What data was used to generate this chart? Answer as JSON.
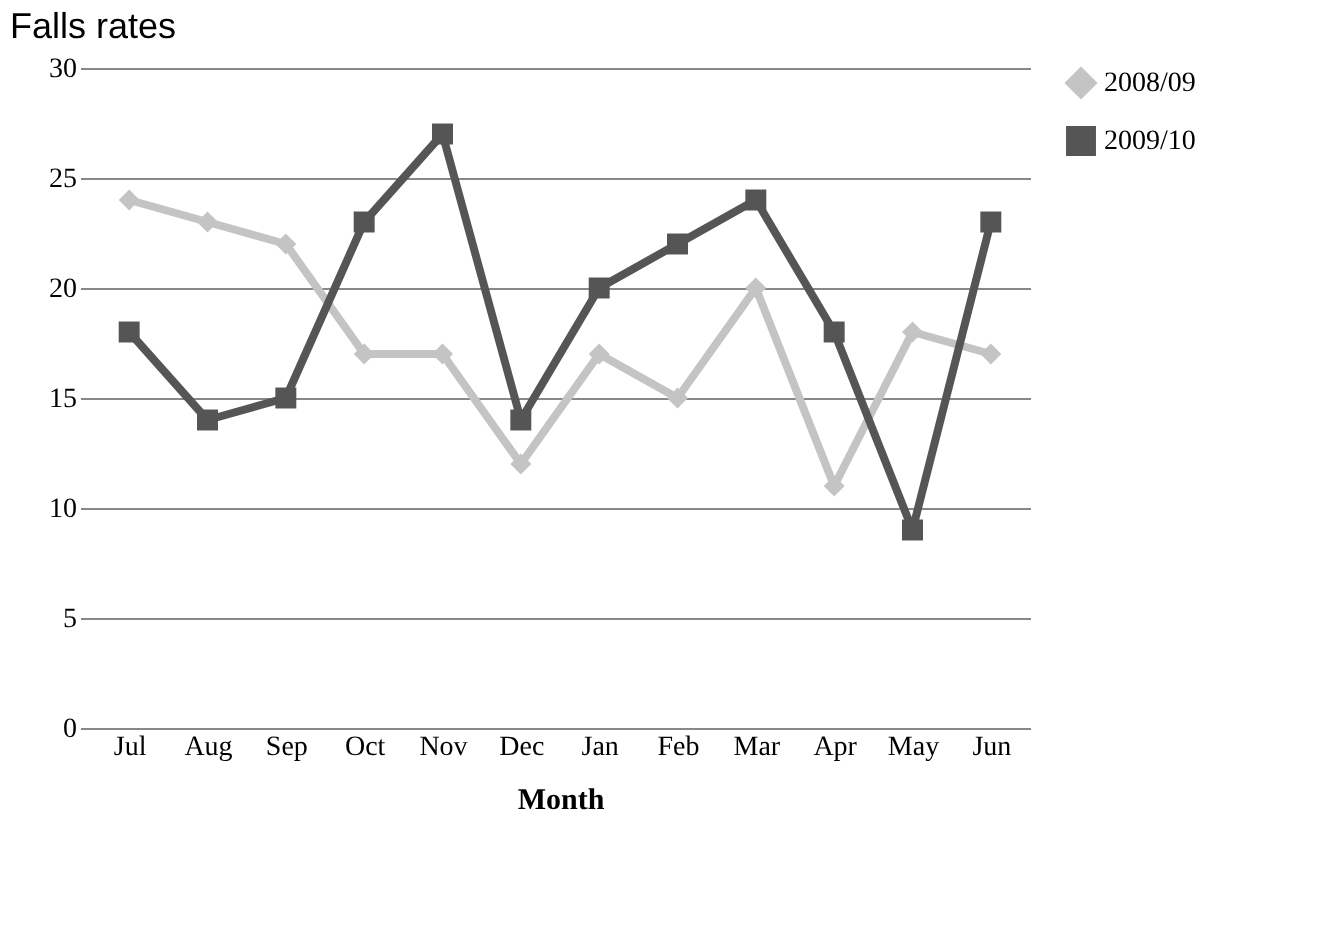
{
  "chart_data": {
    "type": "line",
    "title": "Falls rates",
    "xlabel": "Month",
    "categories": [
      "Jul",
      "Aug",
      "Sep",
      "Oct",
      "Nov",
      "Dec",
      "Jan",
      "Feb",
      "Mar",
      "Apr",
      "May",
      "Jun"
    ],
    "series": [
      {
        "name": "2008/09",
        "color": "#c4c4c4",
        "marker": "diamond",
        "values": [
          24,
          23,
          22,
          17,
          17,
          12,
          17,
          15,
          20,
          11,
          18,
          17
        ]
      },
      {
        "name": "2009/10",
        "color": "#555555",
        "marker": "square",
        "values": [
          18,
          14,
          15,
          23,
          27,
          14,
          20,
          22,
          24,
          18,
          9,
          23
        ]
      }
    ],
    "ylim": [
      0,
      30
    ],
    "yticks": [
      0,
      5,
      10,
      15,
      20,
      25,
      30
    ],
    "grid": "y",
    "legend": "right",
    "line_style": "solid"
  }
}
